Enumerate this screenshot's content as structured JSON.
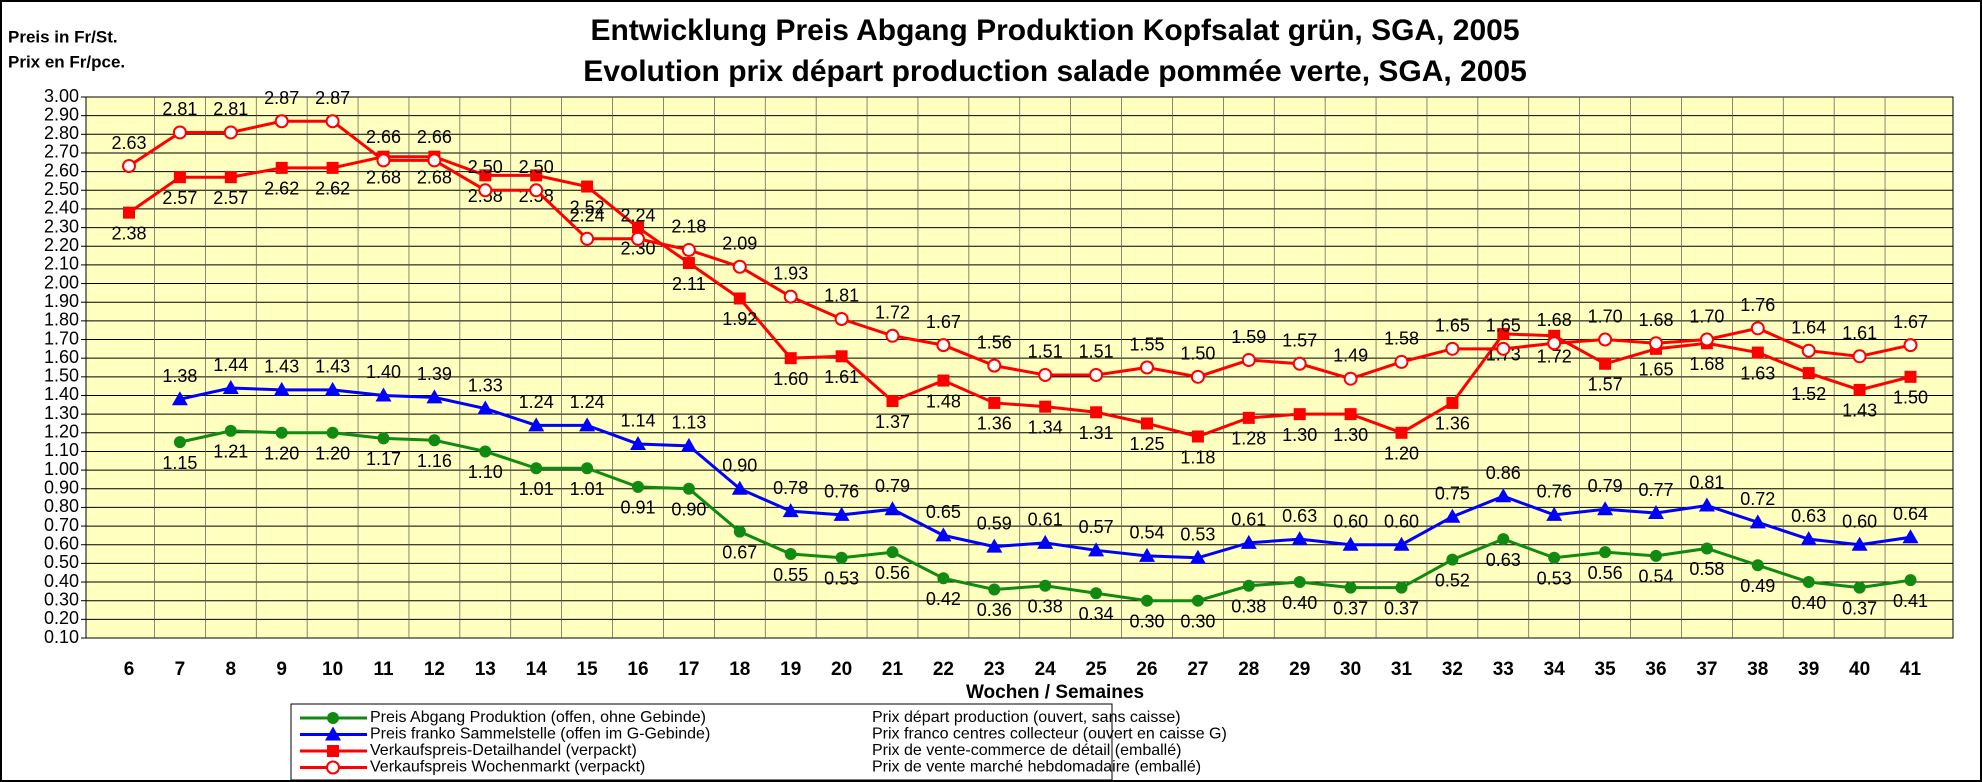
{
  "chart_data": {
    "type": "line",
    "title": "Entwicklung Preis Abgang Produktion Kopfsalat grün, SGA, 2005",
    "subtitle": "Evolution prix départ production salade pommée verte, SGA, 2005",
    "y_label": "Preis in Fr/St.",
    "y_label_fr": "Prix en Fr/pce.",
    "x_label": "Wochen / Semaines",
    "categories": [
      "6",
      "7",
      "8",
      "9",
      "10",
      "11",
      "12",
      "13",
      "14",
      "15",
      "16",
      "17",
      "18",
      "19",
      "20",
      "21",
      "22",
      "23",
      "24",
      "25",
      "26",
      "27",
      "28",
      "29",
      "30",
      "31",
      "32",
      "33",
      "34",
      "35",
      "36",
      "37",
      "38",
      "39",
      "40",
      "41"
    ],
    "ylim": [
      0.1,
      3.0
    ],
    "yticks": [
      {
        "value": 0.1,
        "label": "0.10"
      },
      {
        "value": 0.2,
        "label": "0.20"
      },
      {
        "value": 0.3,
        "label": "0.30"
      },
      {
        "value": 0.4,
        "label": "0.40"
      },
      {
        "value": 0.5,
        "label": "0.50"
      },
      {
        "value": 0.6,
        "label": "0.60"
      },
      {
        "value": 0.7,
        "label": "0.70"
      },
      {
        "value": 0.8,
        "label": "0.80"
      },
      {
        "value": 0.9,
        "label": "0.90"
      },
      {
        "value": 1.0,
        "label": "1.00"
      },
      {
        "value": 1.1,
        "label": "1.10"
      },
      {
        "value": 1.2,
        "label": "1.20"
      },
      {
        "value": 1.3,
        "label": "1.30"
      },
      {
        "value": 1.4,
        "label": "1.40"
      },
      {
        "value": 1.5,
        "label": "1.50"
      },
      {
        "value": 1.6,
        "label": "1.60"
      },
      {
        "value": 1.7,
        "label": "1.70"
      },
      {
        "value": 1.8,
        "label": "1.80"
      },
      {
        "value": 1.9,
        "label": "1.90"
      },
      {
        "value": 2.0,
        "label": "2.00"
      },
      {
        "value": 2.1,
        "label": "2.10"
      },
      {
        "value": 2.2,
        "label": "2.20"
      },
      {
        "value": 2.3,
        "label": "2.30"
      },
      {
        "value": 2.4,
        "label": "2.40"
      },
      {
        "value": 2.5,
        "label": "2.50"
      },
      {
        "value": 2.6,
        "label": "2.60"
      },
      {
        "value": 2.7,
        "label": "2.70"
      },
      {
        "value": 2.8,
        "label": "2.80"
      },
      {
        "value": 2.9,
        "label": "2.90"
      },
      {
        "value": 3.0,
        "label": "3.00"
      }
    ],
    "grid": true,
    "series": [
      {
        "name": "Preis Abgang Produktion (offen, ohne Gebinde)",
        "name_fr": "Prix départ production (ouvert, sans caisse)",
        "color": "#108a10",
        "marker": "circle",
        "label_pos": "below",
        "values": [
          null,
          1.15,
          1.21,
          1.2,
          1.2,
          1.17,
          1.16,
          1.1,
          1.01,
          1.01,
          0.91,
          0.9,
          0.67,
          0.55,
          0.53,
          0.56,
          0.42,
          0.36,
          0.38,
          0.34,
          0.3,
          0.3,
          0.38,
          0.4,
          0.37,
          0.37,
          0.52,
          0.63,
          0.53,
          0.56,
          0.54,
          0.58,
          0.49,
          0.4,
          0.37,
          0.41
        ],
        "value_labels": [
          null,
          "1.15",
          "1.21",
          "1.20",
          "1.20",
          "1.17",
          "1.16",
          "1.10",
          "1.01",
          "1.01",
          "0.91",
          "0.90",
          "0.67",
          "0.55",
          "0.53",
          "0.56",
          "0.42",
          "0.36",
          "0.38",
          "0.34",
          "0.30",
          "0.30",
          "0.38",
          "0.40",
          "0.37",
          "0.37",
          "0.52",
          "0.63",
          "0.53",
          "0.56",
          "0.54",
          "0.58",
          "0.49",
          "0.40",
          "0.37",
          "0.41"
        ]
      },
      {
        "name": "Preis franko Sammelstelle (offen im G-Gebinde)",
        "name_fr": "Prix franco centres collecteur (ouvert en caisse G)",
        "color": "#0000ff",
        "marker": "triangle",
        "label_pos": "above",
        "values": [
          null,
          1.38,
          1.44,
          1.43,
          1.43,
          1.4,
          1.39,
          1.33,
          1.24,
          1.24,
          1.14,
          1.13,
          0.9,
          0.78,
          0.76,
          0.79,
          0.65,
          0.59,
          0.61,
          0.57,
          0.54,
          0.53,
          0.61,
          0.63,
          0.6,
          0.6,
          0.75,
          0.86,
          0.76,
          0.79,
          0.77,
          0.81,
          0.72,
          0.63,
          0.6,
          0.64
        ],
        "value_labels": [
          null,
          "1.38",
          "1.44",
          "1.43",
          "1.43",
          "1.40",
          "1.39",
          "1.33",
          "1.24",
          "1.24",
          "1.14",
          "1.13",
          "0.90",
          "0.78",
          "0.76",
          "0.79",
          "0.65",
          "0.59",
          "0.61",
          "0.57",
          "0.54",
          "0.53",
          "0.61",
          "0.63",
          "0.60",
          "0.60",
          "0.75",
          "0.86",
          "0.76",
          "0.79",
          "0.77",
          "0.81",
          "0.72",
          "0.63",
          "0.60",
          "0.64"
        ]
      },
      {
        "name": "Verkaufspreis-Detailhandel (verpackt)",
        "name_fr": "Prix de vente-commerce de détail (emballé)",
        "color": "#ff0000",
        "marker": "square",
        "label_pos": "below",
        "values": [
          2.38,
          2.57,
          2.57,
          2.62,
          2.62,
          2.68,
          2.68,
          2.58,
          2.58,
          2.52,
          2.3,
          2.11,
          1.92,
          1.6,
          1.61,
          1.37,
          1.48,
          1.36,
          1.34,
          1.31,
          1.25,
          1.18,
          1.28,
          1.3,
          1.3,
          1.2,
          1.36,
          1.73,
          1.72,
          1.57,
          1.65,
          1.68,
          1.63,
          1.52,
          1.43,
          1.5
        ],
        "value_labels": [
          "2.38",
          "2.57",
          "2.57",
          "2.62",
          "2.62",
          "2.68",
          "2.68",
          "2.58",
          "2.58",
          "2.52",
          "2.30",
          "2.11",
          "1.92",
          "1.60",
          "1.61",
          "1.37",
          "1.48",
          "1.36",
          "1.34",
          "1.31",
          "1.25",
          "1.18",
          "1.28",
          "1.30",
          "1.30",
          "1.20",
          "1.36",
          "1.73",
          "1.72",
          "1.57",
          "1.65",
          "1.68",
          "1.63",
          "1.52",
          "1.43",
          "1.50"
        ]
      },
      {
        "name": "Verkaufspreis Wochenmarkt (verpackt)",
        "name_fr": "Prix de vente marché hebdomadaire (emballé)",
        "color": "#ff0000",
        "marker": "open-circle",
        "label_pos": "above",
        "values": [
          2.63,
          2.81,
          2.81,
          2.87,
          2.87,
          2.66,
          2.66,
          2.5,
          2.5,
          2.24,
          2.24,
          2.18,
          2.09,
          1.93,
          1.81,
          1.72,
          1.67,
          1.56,
          1.51,
          1.51,
          1.55,
          1.5,
          1.59,
          1.57,
          1.49,
          1.58,
          1.65,
          1.65,
          1.68,
          1.7,
          1.68,
          1.7,
          1.76,
          1.64,
          1.61,
          1.67
        ],
        "value_labels": [
          "2.63",
          "2.81",
          "2.81",
          "2.87",
          "2.87",
          "2.66",
          "2.66",
          "2.50",
          "2.50",
          "2.24",
          "2.24",
          "2.18",
          "2.09",
          "1.93",
          "1.81",
          "1.72",
          "1.67",
          "1.56",
          "1.51",
          "1.51",
          "1.55",
          "1.50",
          "1.59",
          "1.57",
          "1.49",
          "1.58",
          "1.65",
          "1.65",
          "1.68",
          "1.70",
          "1.68",
          "1.70",
          "1.76",
          "1.64",
          "1.61",
          "1.67"
        ]
      }
    ]
  }
}
